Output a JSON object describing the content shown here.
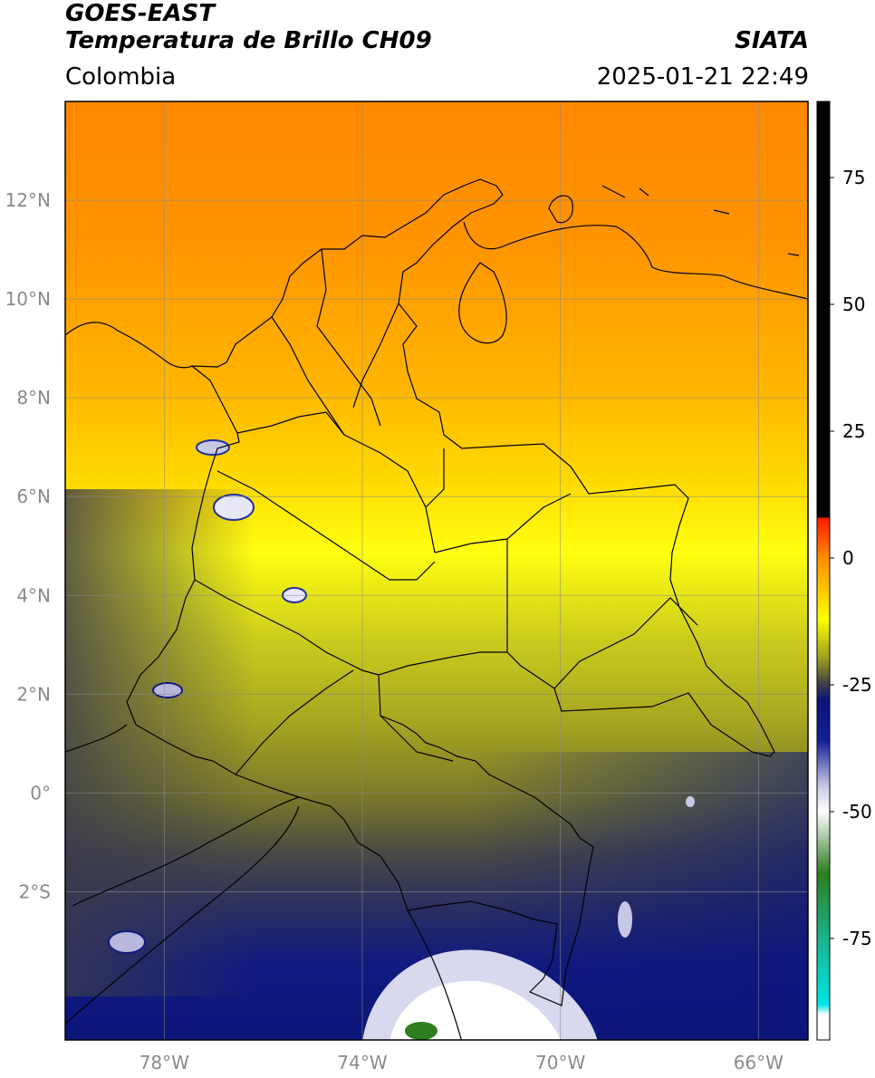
{
  "header": {
    "satellite": "GOES-EAST",
    "product": "Temperatura de Brillo CH09",
    "region": "Colombia",
    "organization": "SIATA",
    "datetime": "2025-01-21 22:49"
  },
  "map": {
    "lon_range": [
      -80,
      -65
    ],
    "lat_range": [
      -5,
      14
    ],
    "lat_ticks": [
      {
        "value": 12,
        "label": "12°N"
      },
      {
        "value": 10,
        "label": "10°N"
      },
      {
        "value": 8,
        "label": "8°N"
      },
      {
        "value": 6,
        "label": "6°N"
      },
      {
        "value": 4,
        "label": "4°N"
      },
      {
        "value": 2,
        "label": "2°N"
      },
      {
        "value": 0,
        "label": "0°"
      },
      {
        "value": -2,
        "label": "2°S"
      }
    ],
    "lon_ticks": [
      {
        "value": -78,
        "label": "78°W"
      },
      {
        "value": -74,
        "label": "74°W"
      },
      {
        "value": -70,
        "label": "70°W"
      },
      {
        "value": -66,
        "label": "66°W"
      }
    ],
    "gridlines": true
  },
  "colorbar": {
    "range": [
      -95,
      90
    ],
    "tick_labels": [
      {
        "value": 75,
        "label": "75"
      },
      {
        "value": 50,
        "label": "50"
      },
      {
        "value": 25,
        "label": "25"
      },
      {
        "value": 0,
        "label": "0"
      },
      {
        "value": -25,
        "label": "-25"
      },
      {
        "value": -50,
        "label": "-50"
      },
      {
        "value": -75,
        "label": "-75"
      }
    ],
    "stops": [
      {
        "value": 90,
        "color": "#000000"
      },
      {
        "value": 8,
        "color": "#000000"
      },
      {
        "value": 7.9,
        "color": "#ff1a00"
      },
      {
        "value": 0,
        "color": "#ff8c00"
      },
      {
        "value": -12,
        "color": "#ffff00"
      },
      {
        "value": -20,
        "color": "#9a9a20"
      },
      {
        "value": -25,
        "color": "#3c3c4a"
      },
      {
        "value": -28,
        "color": "#0a1478"
      },
      {
        "value": -36,
        "color": "#141e96"
      },
      {
        "value": -45,
        "color": "#c8c8e6"
      },
      {
        "value": -50,
        "color": "#ffffff"
      },
      {
        "value": -62,
        "color": "#2e7d1e"
      },
      {
        "value": -75,
        "color": "#1ab28c"
      },
      {
        "value": -88,
        "color": "#00e5e5"
      },
      {
        "value": -90,
        "color": "#ffffff"
      },
      {
        "value": -95,
        "color": "#ffffff"
      }
    ]
  }
}
